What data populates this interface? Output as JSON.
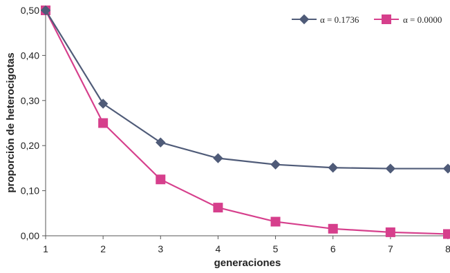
{
  "chart_data": {
    "type": "line",
    "title": "",
    "xlabel": "generaciones",
    "ylabel": "proporción de heterocigotas",
    "x": [
      1,
      2,
      3,
      4,
      5,
      6,
      7,
      8
    ],
    "x_tick_labels": [
      "1",
      "2",
      "3",
      "4",
      "5",
      "6",
      "7",
      "8"
    ],
    "ylim": [
      0,
      0.5
    ],
    "y_ticks": [
      0,
      0.1,
      0.2,
      0.3,
      0.4,
      0.5
    ],
    "y_tick_labels": [
      "0,00",
      "0,10",
      "0,20",
      "0,30",
      "0,40",
      "0,50"
    ],
    "grid": false,
    "legend_position": "top-right",
    "series": [
      {
        "name": "α = 0.1736",
        "marker": "diamond",
        "color": "#4f5b78",
        "values": [
          0.5,
          0.293,
          0.207,
          0.172,
          0.158,
          0.151,
          0.149,
          0.149
        ]
      },
      {
        "name": "α = 0.0000",
        "marker": "square",
        "color": "#d63f8c",
        "values": [
          0.5,
          0.25,
          0.125,
          0.0625,
          0.0313,
          0.0156,
          0.0078,
          0.0039
        ]
      }
    ]
  }
}
